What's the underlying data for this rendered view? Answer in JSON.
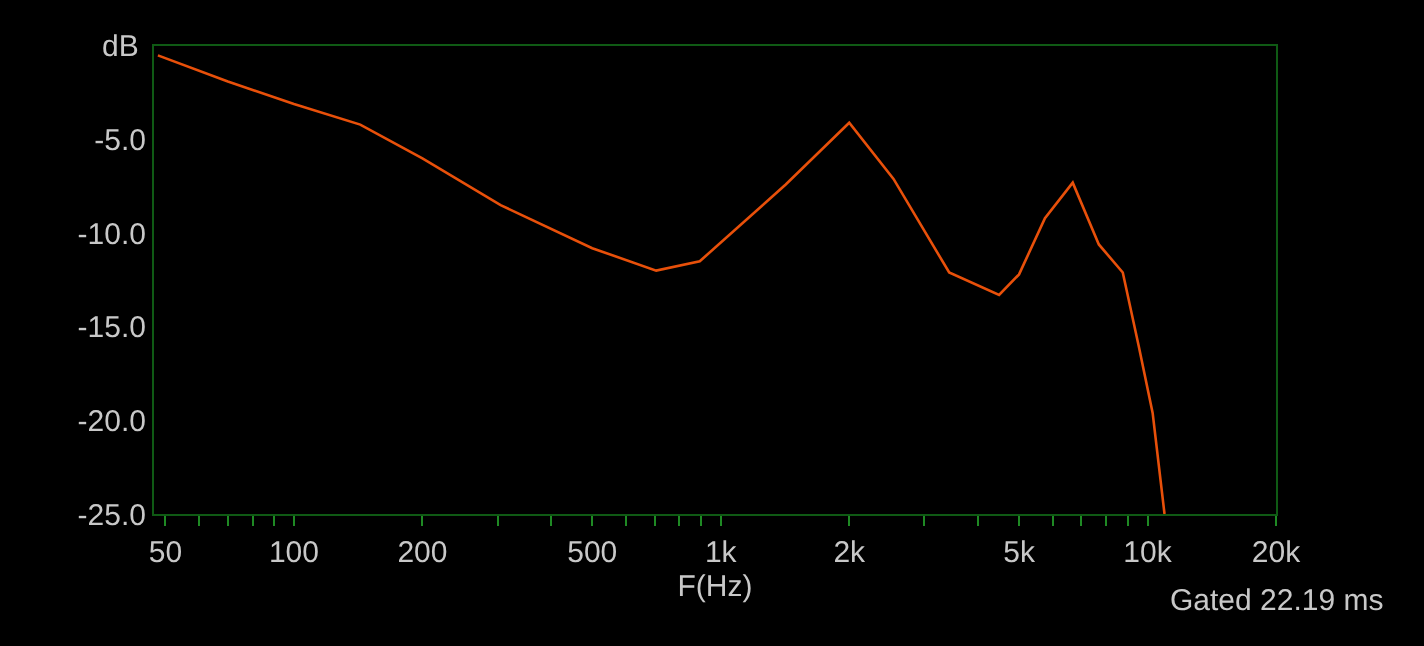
{
  "chart_data": {
    "type": "line",
    "xlabel": "F(Hz)",
    "ylabel": "dB",
    "log": "x",
    "grid": false,
    "marker": "none",
    "line_style": "solid",
    "annotations": [
      "Gated 22.19 ms"
    ],
    "xlim": [
      47,
      20000
    ],
    "ylim": [
      -25,
      0
    ],
    "xticks": [
      50,
      {
        "value": 60,
        "label": null
      },
      {
        "value": 70,
        "label": null
      },
      {
        "value": 80,
        "label": null
      },
      {
        "value": 90,
        "label": null
      },
      100,
      200,
      {
        "value": 300,
        "label": null
      },
      {
        "value": 400,
        "label": null
      },
      500,
      {
        "value": 600,
        "label": null
      },
      {
        "value": 700,
        "label": null
      },
      {
        "value": 800,
        "label": null
      },
      {
        "value": 900,
        "label": null
      },
      {
        "value": 1000,
        "label": "1k"
      },
      {
        "value": 2000,
        "label": "2k"
      },
      {
        "value": 3000,
        "label": null
      },
      {
        "value": 4000,
        "label": null
      },
      {
        "value": 5000,
        "label": "5k"
      },
      {
        "value": 6000,
        "label": null
      },
      {
        "value": 7000,
        "label": null
      },
      {
        "value": 8000,
        "label": null
      },
      {
        "value": 9000,
        "label": null
      },
      {
        "value": 10000,
        "label": "10k"
      },
      {
        "value": 20000,
        "label": "20k"
      }
    ],
    "yticks": [
      {
        "value": -5,
        "label": "-5.0"
      },
      {
        "value": -10,
        "label": "-10.0"
      },
      {
        "value": -15,
        "label": "-15.0"
      },
      {
        "value": -20,
        "label": "-20.0"
      },
      {
        "value": -25,
        "label": "-25.0"
      }
    ],
    "x": [
      48,
      70,
      100,
      143,
      200,
      305,
      500,
      706,
      893,
      1420,
      2000,
      2540,
      3430,
      4490,
      5000,
      5750,
      6680,
      7690,
      8750,
      9530,
      10280,
      10960
    ],
    "series": [
      {
        "color": "#e8500a",
        "values": [
          -0.5,
          -1.9,
          -3.1,
          -4.2,
          -6.0,
          -8.5,
          -10.8,
          -12.0,
          -11.5,
          -7.4,
          -4.1,
          -7.1,
          -12.1,
          -13.3,
          -12.2,
          -9.2,
          -7.3,
          -10.6,
          -12.1,
          -16.0,
          -19.6,
          -25.0
        ]
      }
    ]
  }
}
